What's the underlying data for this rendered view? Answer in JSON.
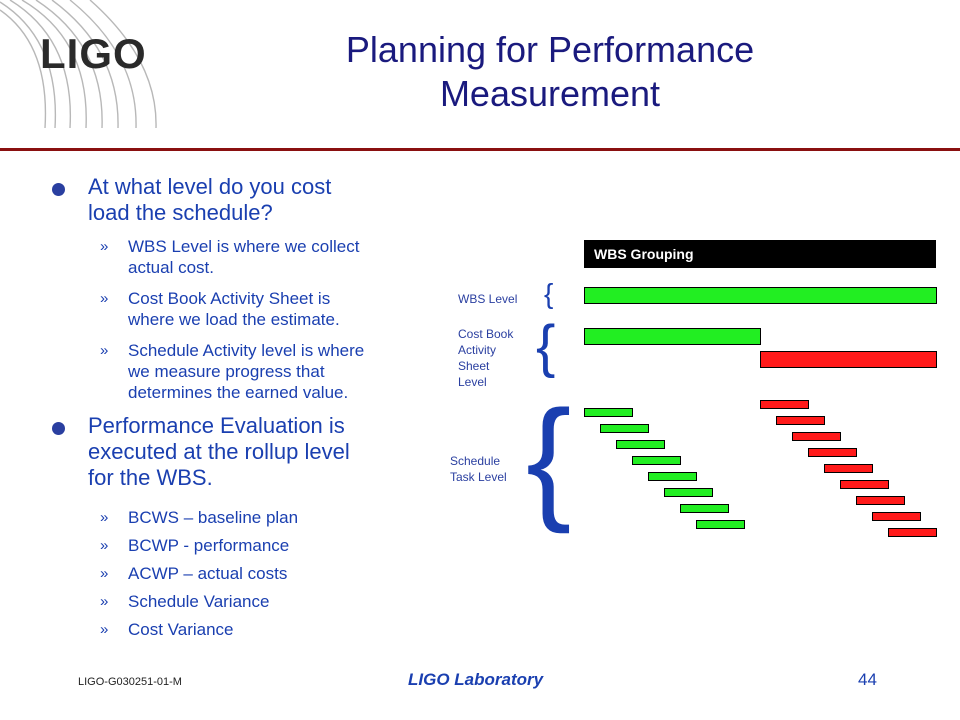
{
  "logo": {
    "text": "LIGO"
  },
  "title": {
    "line1": "Planning for Performance",
    "line2": "Measurement"
  },
  "bullets": [
    {
      "text_lines": [
        "At what level do you cost",
        "load the schedule?"
      ],
      "subitems": [
        {
          "marker": "»",
          "lines": [
            "WBS Level is where we collect",
            "actual cost."
          ]
        },
        {
          "marker": "»",
          "lines": [
            "Cost Book Activity Sheet is",
            "where we load the estimate."
          ]
        },
        {
          "marker": "»",
          "lines": [
            "Schedule Activity level is where",
            "we measure progress that",
            "determines the earned value."
          ]
        }
      ]
    },
    {
      "text_lines": [
        "Performance Evaluation is",
        "executed at the rollup level",
        "for the WBS."
      ],
      "subitems": [
        {
          "marker": "»",
          "lines": [
            "BCWS – baseline plan"
          ]
        },
        {
          "marker": "»",
          "lines": [
            "BCWP - performance"
          ]
        },
        {
          "marker": "»",
          "lines": [
            "ACWP – actual costs"
          ]
        },
        {
          "marker": "»",
          "lines": [
            "Schedule Variance"
          ]
        },
        {
          "marker": "»",
          "lines": [
            "Cost Variance"
          ]
        }
      ]
    }
  ],
  "diagram": {
    "header": "WBS Grouping",
    "labels": {
      "wbs_level": "WBS Level",
      "cost_book": [
        "Cost Book",
        "Activity",
        "Sheet",
        "Level"
      ],
      "schedule_task": [
        "Schedule",
        "Task Level"
      ]
    },
    "brace_char": "{",
    "colors": {
      "green": "#22ee22",
      "red": "#ff1a1a",
      "black": "#000000"
    }
  },
  "footer": {
    "doc_id": "LIGO-G030251-01-M",
    "lab": "LIGO Laboratory",
    "page": "44"
  }
}
